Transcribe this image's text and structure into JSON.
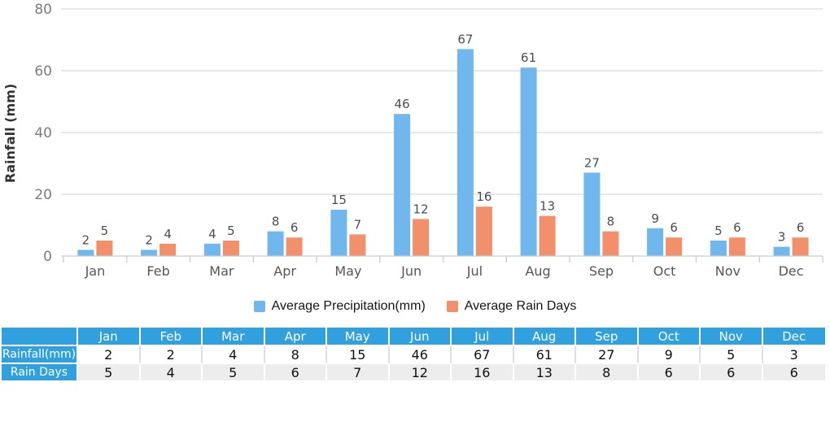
{
  "chart_data": {
    "type": "bar",
    "title": "",
    "categories": [
      "Jan",
      "Feb",
      "Mar",
      "Apr",
      "May",
      "Jun",
      "Jul",
      "Aug",
      "Sep",
      "Oct",
      "Nov",
      "Dec"
    ],
    "series": [
      {
        "name": "Average Precipitation(mm)",
        "color": "#6fb7ec",
        "values": [
          2,
          2,
          4,
          8,
          15,
          46,
          67,
          61,
          27,
          9,
          5,
          3
        ]
      },
      {
        "name": "Average Rain Days",
        "color": "#f2906b",
        "values": [
          5,
          4,
          5,
          6,
          7,
          12,
          16,
          13,
          8,
          6,
          6,
          6
        ]
      }
    ],
    "xlabel": "",
    "ylabel": "Rainfall (mm)",
    "ylim": [
      0,
      80
    ],
    "yticks": [
      0,
      20,
      40,
      60,
      80
    ],
    "grid": true,
    "legend_position": "bottom",
    "bar_value_labels": true
  },
  "table": {
    "corner_label": "",
    "columns": [
      "Jan",
      "Feb",
      "Mar",
      "Apr",
      "May",
      "Jun",
      "Jul",
      "Aug",
      "Sep",
      "Oct",
      "Nov",
      "Dec"
    ],
    "rows": [
      {
        "label": "Rainfall(mm)",
        "values": [
          2,
          2,
          4,
          8,
          15,
          46,
          67,
          61,
          27,
          9,
          5,
          3
        ]
      },
      {
        "label": "Rain Days",
        "values": [
          5,
          4,
          5,
          6,
          7,
          12,
          16,
          13,
          8,
          6,
          6,
          6
        ]
      }
    ]
  },
  "palette": {
    "precipitation_bar": "#6fb7ec",
    "rain_days_bar": "#f2906b",
    "table_header": "#31a0de",
    "table_alt_row": "#ededed",
    "gridline": "#cfcfcf",
    "axis_line": "#c3ced8",
    "tick_label": "#7c7c7c",
    "month_label": "#555555",
    "value_label": "#4d4d4d"
  }
}
